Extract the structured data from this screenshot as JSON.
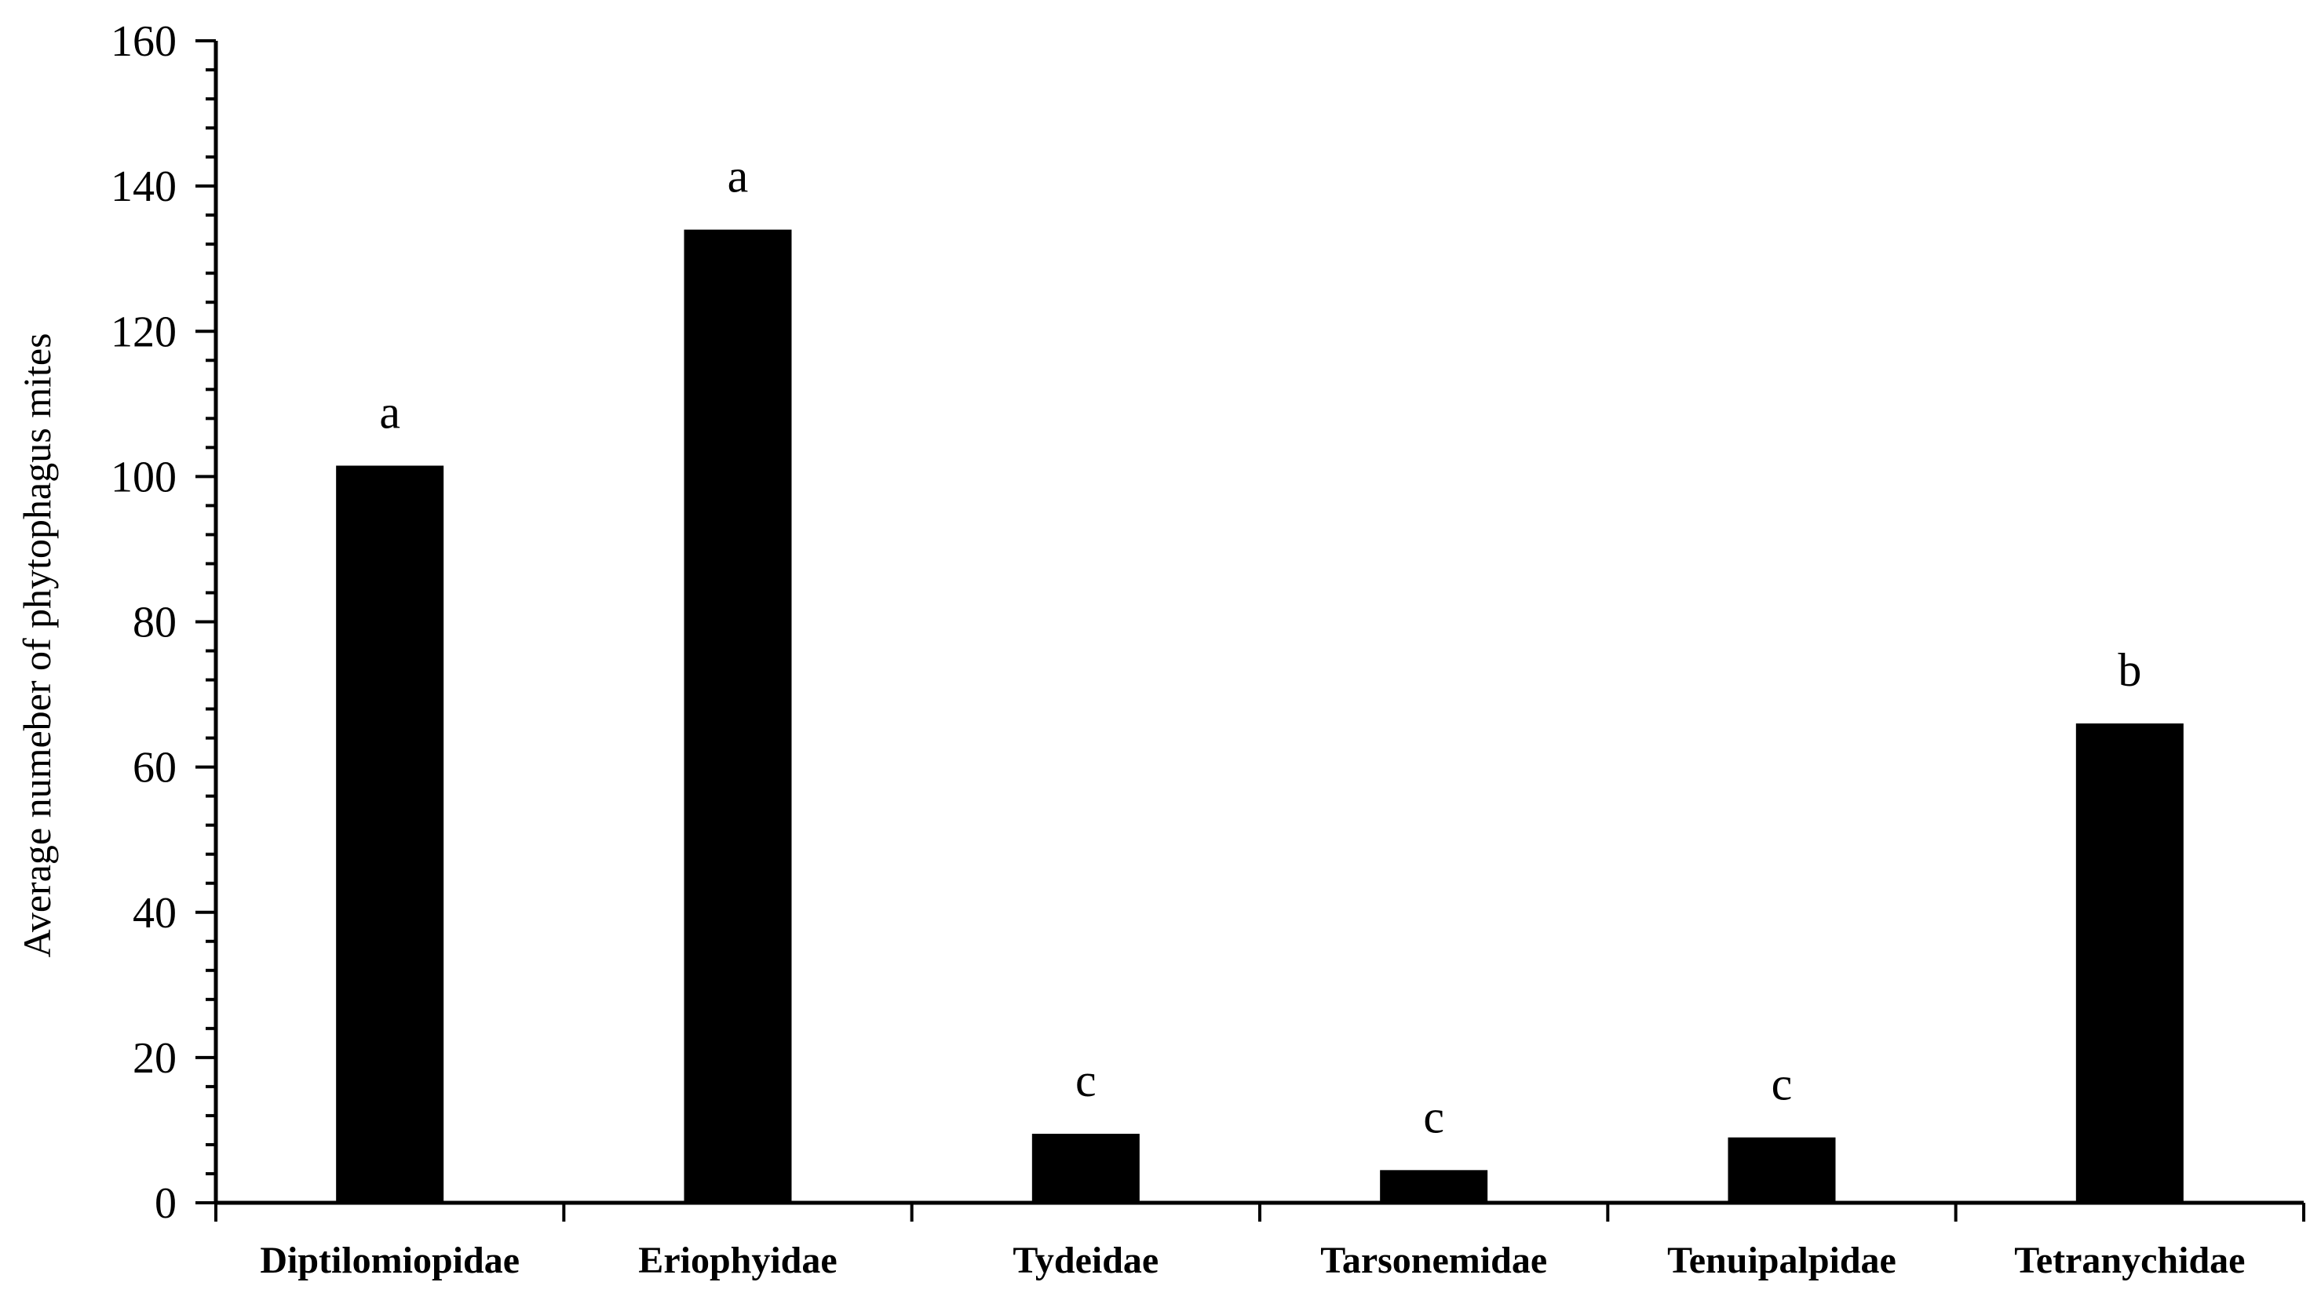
{
  "chart_data": {
    "type": "bar",
    "title": "",
    "xlabel": "",
    "ylabel": "Average numeber of phytophagus mites",
    "ylim": [
      0,
      160
    ],
    "yticks": [
      0,
      20,
      40,
      60,
      80,
      100,
      120,
      140,
      160
    ],
    "minor_tick_step": 4,
    "grid": false,
    "legend": "none",
    "bar_color": "#000000",
    "categories": [
      "Diptilomiopidae",
      "Eriophyidae",
      "Tydeidae",
      "Tarsonemidae",
      "Tenuipalpidae",
      "Tetranychidae"
    ],
    "values": [
      101.5,
      134,
      9.5,
      4.5,
      9,
      66
    ],
    "significance_letters": [
      "a",
      "a",
      "c",
      "c",
      "c",
      "b"
    ]
  }
}
